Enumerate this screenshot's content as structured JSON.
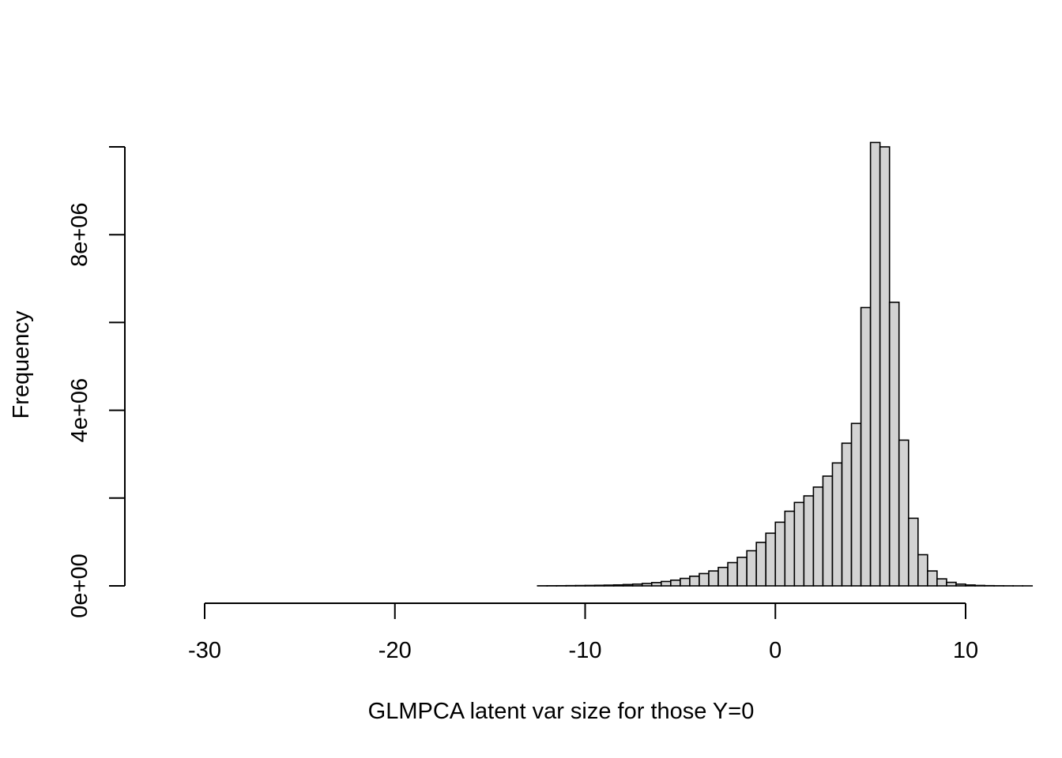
{
  "chart_data": {
    "type": "bar",
    "subtype": "histogram",
    "title": "",
    "xlabel": "GLMPCA latent var size for those Y=0",
    "ylabel": "Frequency",
    "xlim": [
      -30,
      10
    ],
    "ylim": [
      0,
      10000000
    ],
    "x_ticks": [
      -30,
      -20,
      -10,
      0,
      10
    ],
    "x_tick_labels": [
      "-30",
      "-20",
      "-10",
      "0",
      "10"
    ],
    "y_ticks": [
      0,
      2000000,
      4000000,
      6000000,
      8000000,
      10000000
    ],
    "y_tick_labels": [
      "0e+00",
      "",
      "4e+06",
      "",
      "8e+06",
      ""
    ],
    "grid": false,
    "bin_width": 0.5,
    "bins_start": -32.5,
    "bar_fill": "#d3d3d3",
    "bar_stroke": "#000000",
    "values": [
      0,
      0,
      0,
      0,
      0,
      0,
      0,
      0,
      0,
      0,
      0,
      0,
      0,
      0,
      0,
      0,
      0,
      0,
      0,
      0,
      0,
      0,
      0,
      0,
      0,
      0,
      0,
      0,
      0,
      0,
      0,
      0,
      0,
      0,
      0,
      0,
      0,
      0,
      0,
      0,
      2000,
      3000,
      4000,
      6000,
      8000,
      10000,
      13000,
      17000,
      22000,
      30000,
      40000,
      55000,
      75000,
      100000,
      130000,
      170000,
      220000,
      280000,
      340000,
      420000,
      530000,
      650000,
      800000,
      990000,
      1200000,
      1450000,
      1700000,
      1900000,
      2050000,
      2250000,
      2500000,
      2800000,
      3250000,
      3700000,
      6340000,
      10100000,
      10000000,
      6460000,
      3320000,
      1540000,
      710000,
      340000,
      160000,
      80000,
      40000,
      20000,
      10000,
      5000,
      2500,
      1200,
      600,
      300
    ]
  }
}
